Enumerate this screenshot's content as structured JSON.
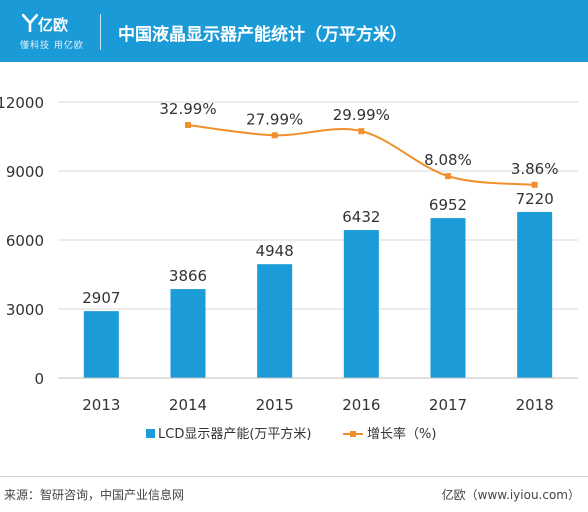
{
  "header": {
    "logo_name": "亿欧",
    "logo_slogan": "懂科技 用亿欧",
    "title": "中国液晶显示器产能统计（万平方米）"
  },
  "colors": {
    "header_bg": "#1a9ad7",
    "bar": "#1b9bd7",
    "line": "#f0902d"
  },
  "chart_data": {
    "type": "bar",
    "categories": [
      "2013",
      "2014",
      "2015",
      "2016",
      "2017",
      "2018"
    ],
    "series": [
      {
        "name": "LCD显示器产能(万平方米)",
        "type": "bar",
        "values": [
          2907,
          3866,
          4948,
          6432,
          6952,
          7220
        ],
        "labels": [
          "2907",
          "3866",
          "4948",
          "6432",
          "6952",
          "7220"
        ]
      },
      {
        "name": "增长率（%)",
        "type": "line",
        "values": [
          null,
          32.99,
          27.99,
          29.99,
          8.08,
          3.86
        ],
        "labels": [
          "",
          "32.99%",
          "27.99%",
          "29.99%",
          "8.08%",
          "3.86%"
        ]
      }
    ],
    "yticks": [
      "0",
      "3000",
      "6000",
      "9000",
      "12000"
    ],
    "ylim": [
      0,
      12000
    ],
    "legend_position": "bottom"
  },
  "footer": {
    "source": "来源：智研咨询，中国产业信息网",
    "brand": "亿欧（www.iyiou.com）"
  }
}
